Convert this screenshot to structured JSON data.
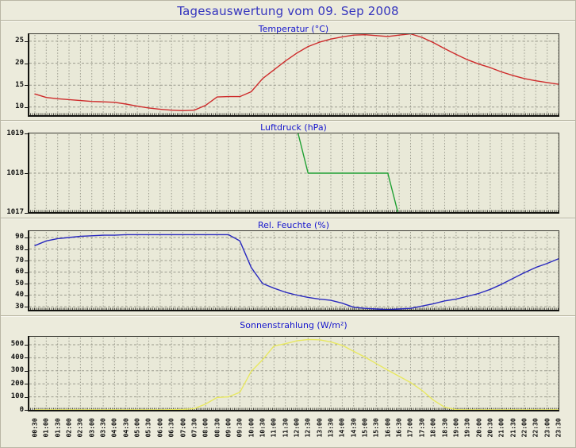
{
  "page": {
    "title": "Tagesauswertung vom 09. Sep 2008",
    "title_color": "#3434be",
    "background_color": "#ecebdc"
  },
  "x_axis": {
    "tick_labels": [
      "00:30",
      "01:00",
      "01:30",
      "02:00",
      "02:30",
      "03:00",
      "03:30",
      "04:00",
      "04:30",
      "05:00",
      "05:30",
      "06:00",
      "06:30",
      "07:00",
      "07:30",
      "08:00",
      "08:30",
      "09:00",
      "09:30",
      "10:00",
      "10:30",
      "11:00",
      "11:30",
      "12:00",
      "12:30",
      "13:00",
      "13:30",
      "14:00",
      "14:30",
      "15:00",
      "15:30",
      "16:00",
      "16:30",
      "17:00",
      "17:30",
      "18:00",
      "18:30",
      "19:00",
      "19:30",
      "20:00",
      "20:30",
      "21:00",
      "21:30",
      "22:00",
      "22:30",
      "23:00",
      "23:30"
    ]
  },
  "chart_data": [
    {
      "id": "temperatur",
      "type": "line",
      "title": "Temperatur (°C)",
      "color": "#ce2b2b",
      "ylim": [
        7.8,
        26.8
      ],
      "yticks": [
        10,
        15,
        20,
        25
      ],
      "grid": true,
      "values": [
        13,
        12.2,
        11.9,
        11.7,
        11.5,
        11.3,
        11.2,
        11.1,
        10.7,
        10.2,
        9.8,
        9.5,
        9.3,
        9.2,
        9.3,
        10.4,
        12.3,
        12.4,
        12.4,
        13.5,
        16.5,
        18.5,
        20.5,
        22.3,
        23.8,
        24.8,
        25.5,
        26,
        26.4,
        26.5,
        26.3,
        26.1,
        26.4,
        26.7,
        25.9,
        24.7,
        23.3,
        22,
        20.8,
        19.8,
        19,
        18,
        17.2,
        16.5,
        16,
        15.6,
        15.2
      ]
    },
    {
      "id": "luftdruck",
      "type": "line",
      "title": "Luftdruck (hPa)",
      "color": "#1fa032",
      "ylim": [
        1016.97,
        1019.03
      ],
      "yticks": [
        1017,
        1018,
        1019
      ],
      "grid": true,
      "points": [
        [
          "12:00",
          1019.15
        ],
        [
          "12:30",
          1018
        ],
        [
          "16:00",
          1018
        ],
        [
          "16:40",
          1016.5
        ]
      ],
      "note": "Line clipped by 1017–1019 axis range: enters from top edge ~12:00, flat at 1018 from 12:30 to 16:00, exits bottom edge ~16:30"
    },
    {
      "id": "rel-feuchte",
      "type": "line",
      "title": "Rel. Feuchte (%)",
      "color": "#2a2abf",
      "ylim": [
        25.9,
        96.2
      ],
      "yticks": [
        30,
        40,
        50,
        60,
        70,
        80,
        90
      ],
      "grid": true,
      "values": [
        83,
        87,
        89,
        90,
        91,
        91.5,
        92,
        92,
        92.5,
        92.5,
        92.5,
        92.5,
        92.5,
        92.5,
        92.5,
        92.5,
        92.5,
        92.5,
        87,
        64,
        50,
        46,
        42.5,
        40,
        38,
        36.5,
        35.5,
        33,
        29.5,
        28.5,
        28,
        27.5,
        28,
        28.5,
        30.5,
        32.5,
        35,
        36.5,
        39,
        41.5,
        45,
        49.5,
        54.5,
        59.5,
        64,
        67.5,
        71.5
      ]
    },
    {
      "id": "sonnenstrahlung",
      "type": "line",
      "title": "Sonnenstrahlung (W/m²)",
      "color": "#e8e860",
      "ylim": [
        -12,
        567
      ],
      "yticks": [
        0,
        100,
        200,
        300,
        400,
        500
      ],
      "grid": true,
      "values": [
        0,
        0,
        0,
        0,
        0,
        0,
        0,
        0,
        0,
        0,
        0,
        0,
        2,
        4,
        10,
        45,
        95,
        100,
        135,
        295,
        385,
        490,
        508,
        530,
        540,
        538,
        522,
        495,
        450,
        405,
        355,
        305,
        258,
        210,
        150,
        75,
        20,
        2,
        0,
        0,
        0,
        0,
        0,
        0,
        0,
        0,
        0
      ]
    }
  ]
}
